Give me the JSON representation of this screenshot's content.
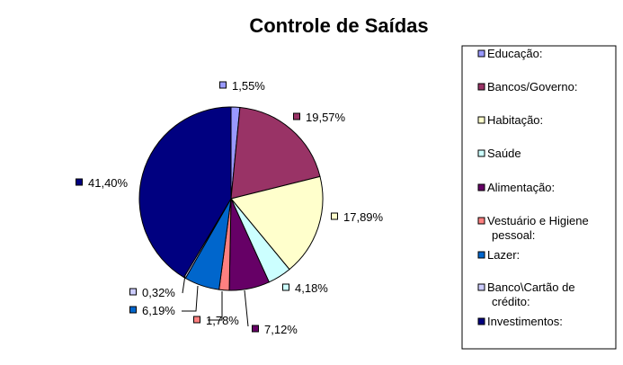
{
  "chart_data": {
    "type": "pie",
    "title": "Controle de Saídas",
    "legend_position": "right",
    "slices": [
      {
        "label": "Educação:",
        "value": 1.55,
        "display": "1,55%",
        "color": "#9999ff"
      },
      {
        "label": "Bancos/Governo:",
        "value": 19.57,
        "display": "19,57%",
        "color": "#993366"
      },
      {
        "label": "Habitação:",
        "value": 17.89,
        "display": "17,89%",
        "color": "#ffffcc"
      },
      {
        "label": "Saúde",
        "value": 4.18,
        "display": "4,18%",
        "color": "#ccffff"
      },
      {
        "label": "Alimentação:",
        "value": 7.12,
        "display": "7,12%",
        "color": "#660066"
      },
      {
        "label": "Vestuário e Higiene pessoal:",
        "value": 1.78,
        "display": "1,78%",
        "color": "#ff8080"
      },
      {
        "label": "Lazer:",
        "value": 6.19,
        "display": "6,19%",
        "color": "#0066cc"
      },
      {
        "label": "Banco\\Cartão de crédito:",
        "value": 0.32,
        "display": "0,32%",
        "color": "#ccccff"
      },
      {
        "label": "Investimentos:",
        "value": 41.4,
        "display": "41,40%",
        "color": "#000080"
      }
    ]
  }
}
